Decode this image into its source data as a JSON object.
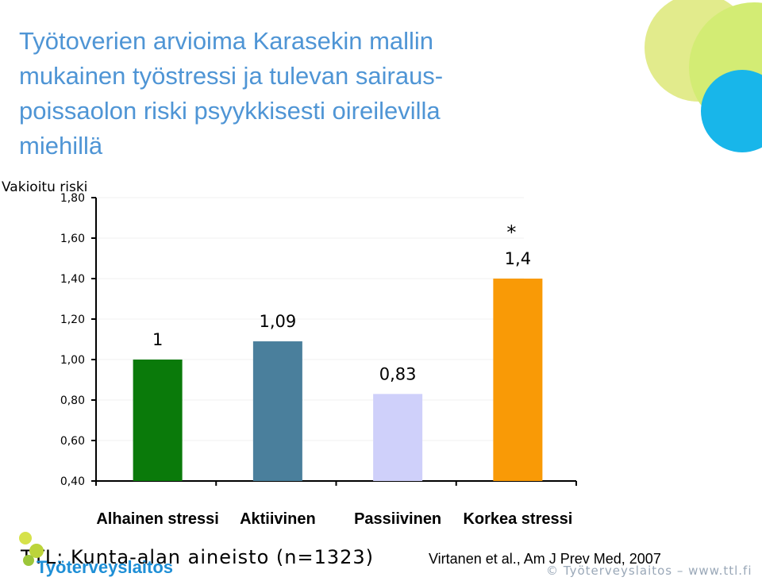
{
  "slide": {
    "title_lines": [
      "Työtoverien arvioima Karasekin mallin",
      "mukainen työstressi ja tulevan sairaus-",
      "poissaolon riski psyykkisesti oireilevilla",
      "miehillä"
    ],
    "footer_left": "TTL: Kunta-alan aineisto (n=1323)",
    "footer_right": "Virtanen et al., Am J Prev Med, 2007",
    "footer_copyright": "© Työterveyslaitos  –  www.ttl.fi",
    "logo_text": "Työterveyslaitos"
  },
  "chart_data": {
    "type": "bar",
    "ylabel": "Vakioitu riski",
    "ylim": [
      0.4,
      1.8
    ],
    "yticks": [
      "1,80",
      "1,60",
      "1,40",
      "1,20",
      "1,00",
      "0,80",
      "0,60",
      "0,40"
    ],
    "ytick_values": [
      1.8,
      1.6,
      1.4,
      1.2,
      1.0,
      0.8,
      0.6,
      0.4
    ],
    "categories": [
      "Alhainen stressi",
      "Aktiivinen",
      "Passiivinen",
      "Korkea stressi"
    ],
    "values": [
      1.0,
      1.09,
      0.83,
      1.4
    ],
    "data_labels": [
      "1",
      "1,09",
      "0,83",
      "1,4"
    ],
    "colors": [
      "#0a7a0a",
      "#4a7f9c",
      "#cfd0fa",
      "#f99a06"
    ],
    "annotations": [
      {
        "category": "Korkea stressi",
        "text": "*"
      }
    ],
    "grid": false
  },
  "colors": {
    "title": "#4f95d5",
    "deco_yellow": "#d8ec72",
    "deco_blue": "#18b6ea"
  }
}
